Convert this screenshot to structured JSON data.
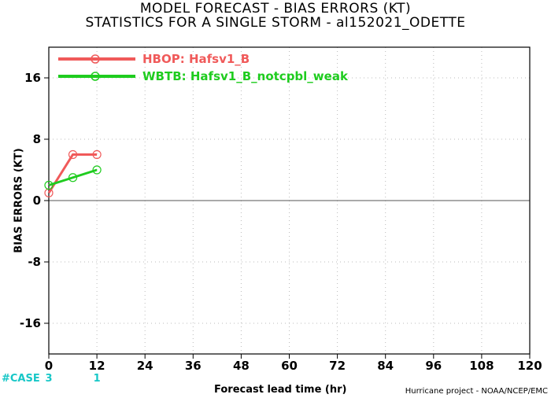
{
  "title_line1": "MODEL FORECAST - BIAS ERRORS (KT)",
  "title_line2": "STATISTICS FOR A SINGLE STORM - al152021_ODETTE",
  "case_label": "#CASE",
  "case_counts": [
    {
      "x": 0,
      "label": "3"
    },
    {
      "x": 12,
      "label": "1"
    }
  ],
  "credit": "Hurricane project - NOAA/NCEP/EMC",
  "chart_data": {
    "type": "line",
    "title": "MODEL FORECAST - BIAS ERRORS (KT)",
    "subtitle": "STATISTICS FOR A SINGLE STORM - al152021_ODETTE",
    "xlabel": "Forecast lead time (hr)",
    "ylabel": "BIAS ERRORS (KT)",
    "xlim": [
      0,
      120
    ],
    "ylim": [
      -20,
      20
    ],
    "xticks": [
      0,
      12,
      24,
      36,
      48,
      60,
      72,
      84,
      96,
      108,
      120
    ],
    "yticks": [
      -16,
      -8,
      0,
      8,
      16
    ],
    "grid": true,
    "legend_position": "top-left",
    "zero_line": true,
    "series": [
      {
        "name": "HBOP: Hafsv1_B",
        "color": "#f05a5a",
        "x": [
          0,
          6,
          12
        ],
        "y": [
          1,
          6,
          6
        ]
      },
      {
        "name": "WBTB: Hafsv1_B_notcpbl_weak",
        "color": "#1fcc1f",
        "x": [
          0,
          6,
          12
        ],
        "y": [
          2,
          3,
          4
        ]
      }
    ]
  }
}
